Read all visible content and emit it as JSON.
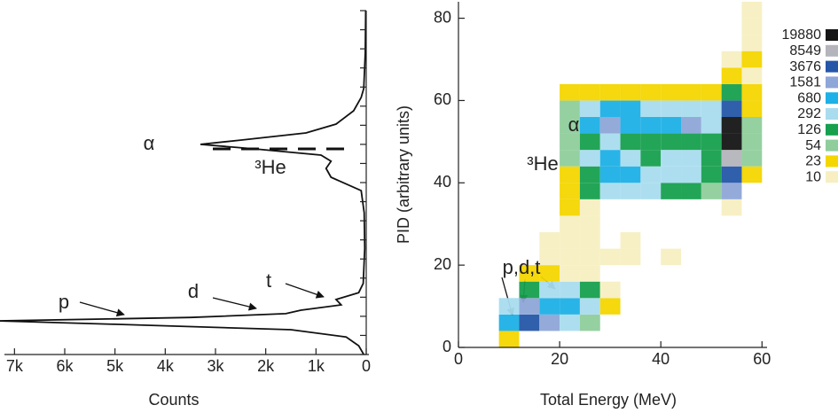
{
  "chart_data": [
    {
      "type": "line",
      "orientation": "horizontal",
      "xlabel": "Counts",
      "xlim": [
        7200,
        0
      ],
      "xticks": [
        {
          "value": 7000,
          "label": "7k"
        },
        {
          "value": 6000,
          "label": "6k"
        },
        {
          "value": 5000,
          "label": "5k"
        },
        {
          "value": 4000,
          "label": "4k"
        },
        {
          "value": 3000,
          "label": "3k"
        },
        {
          "value": 2000,
          "label": "2k"
        },
        {
          "value": 1000,
          "label": "1k"
        },
        0
      ],
      "ylim": [
        0,
        90
      ],
      "yticks": [
        0,
        5,
        10,
        15,
        20,
        25,
        30,
        35,
        40,
        45,
        50,
        55,
        60,
        65,
        70,
        75,
        80,
        85,
        90
      ],
      "ytick_labels": false,
      "yaxis_side": "right",
      "color": "#111111",
      "y": [
        0,
        2.3,
        4.6,
        6.5,
        7.9,
        8.8,
        9.7,
        10.7,
        11.6,
        13.0,
        14.4,
        16.2,
        18.6,
        27.8,
        37.1,
        42.9,
        45.2,
        46.4,
        48.7,
        50.6,
        52.2,
        53.8,
        55.0,
        56.1,
        58.0,
        60.3,
        63.8,
        67.3,
        69.6,
        78.9,
        90
      ],
      "values": [
        50,
        150,
        400,
        1500,
        5000,
        7300,
        3500,
        1600,
        1300,
        500,
        600,
        150,
        60,
        30,
        40,
        100,
        500,
        700,
        800,
        700,
        900,
        2200,
        3300,
        2500,
        1200,
        600,
        250,
        100,
        50,
        20,
        10
      ],
      "annotations": [
        "α",
        "³He",
        "p",
        "d",
        "t"
      ]
    },
    {
      "type": "heatmap",
      "xlabel": "Total Energy (MeV)",
      "ylabel": "PID (arbitrary units)",
      "xlim": [
        0,
        61
      ],
      "xticks": [
        0,
        20,
        40,
        60
      ],
      "ylim": [
        0,
        84
      ],
      "yticks": [
        0,
        20,
        40,
        60,
        80
      ],
      "xbins": [
        0,
        4,
        8,
        12,
        16,
        20,
        24,
        28,
        32,
        36,
        40,
        44,
        48,
        52,
        56,
        60
      ],
      "ybins": [
        0,
        4,
        8,
        12,
        16,
        20,
        24,
        28,
        32,
        36,
        40,
        44,
        48,
        52,
        56,
        60,
        64,
        68,
        72,
        76,
        80,
        84
      ],
      "z": [
        [
          0,
          0,
          23,
          0,
          0,
          0,
          0,
          0,
          0,
          0,
          0,
          0,
          0,
          0,
          0
        ],
        [
          0,
          0,
          680,
          3676,
          1581,
          292,
          54,
          0,
          0,
          0,
          0,
          0,
          0,
          0,
          0
        ],
        [
          0,
          0,
          292,
          1581,
          680,
          680,
          292,
          23,
          0,
          0,
          0,
          0,
          0,
          0,
          0
        ],
        [
          0,
          0,
          0,
          126,
          292,
          292,
          126,
          10,
          0,
          0,
          0,
          0,
          0,
          0,
          0
        ],
        [
          0,
          0,
          0,
          23,
          23,
          10,
          10,
          0,
          0,
          0,
          0,
          0,
          0,
          0,
          0
        ],
        [
          0,
          0,
          0,
          0,
          10,
          10,
          10,
          10,
          10,
          0,
          10,
          0,
          0,
          0,
          0
        ],
        [
          0,
          0,
          0,
          0,
          10,
          10,
          10,
          0,
          10,
          0,
          0,
          0,
          0,
          0,
          0
        ],
        [
          0,
          0,
          0,
          0,
          0,
          10,
          10,
          0,
          0,
          0,
          0,
          0,
          0,
          0,
          0
        ],
        [
          0,
          0,
          0,
          0,
          0,
          23,
          10,
          0,
          0,
          0,
          0,
          0,
          0,
          10,
          0
        ],
        [
          0,
          0,
          0,
          0,
          0,
          23,
          126,
          292,
          292,
          292,
          126,
          126,
          54,
          1581,
          0
        ],
        [
          0,
          0,
          0,
          0,
          0,
          23,
          126,
          680,
          680,
          292,
          292,
          292,
          126,
          3676,
          23
        ],
        [
          0,
          0,
          0,
          0,
          0,
          54,
          292,
          680,
          292,
          126,
          292,
          292,
          126,
          8549,
          54
        ],
        [
          0,
          0,
          0,
          0,
          0,
          54,
          126,
          292,
          126,
          126,
          126,
          126,
          126,
          19880,
          54
        ],
        [
          0,
          0,
          0,
          0,
          0,
          54,
          680,
          1581,
          680,
          680,
          680,
          1581,
          292,
          19880,
          54
        ],
        [
          0,
          0,
          0,
          0,
          0,
          54,
          292,
          680,
          680,
          292,
          292,
          292,
          292,
          3676,
          23
        ],
        [
          0,
          0,
          0,
          0,
          0,
          23,
          23,
          23,
          23,
          23,
          23,
          23,
          23,
          126,
          23
        ],
        [
          0,
          0,
          0,
          0,
          0,
          0,
          0,
          0,
          0,
          0,
          0,
          0,
          0,
          23,
          10
        ],
        [
          0,
          0,
          0,
          0,
          0,
          0,
          0,
          0,
          0,
          0,
          0,
          0,
          0,
          10,
          23
        ],
        [
          0,
          0,
          0,
          0,
          0,
          0,
          0,
          0,
          0,
          0,
          0,
          0,
          0,
          0,
          10
        ],
        [
          0,
          0,
          0,
          0,
          0,
          0,
          0,
          0,
          0,
          0,
          0,
          0,
          0,
          0,
          10
        ],
        [
          0,
          0,
          0,
          0,
          0,
          0,
          0,
          0,
          0,
          0,
          0,
          0,
          0,
          0,
          10
        ]
      ],
      "colorbar": {
        "levels": [
          19880,
          8549,
          3676,
          1581,
          680,
          292,
          126,
          54,
          23,
          10
        ],
        "colors": [
          "#151515",
          "#b4b4bc",
          "#2556a8",
          "#8ea6d8",
          "#1eb0e6",
          "#a9dcef",
          "#17a04e",
          "#8fcd9c",
          "#f4d600",
          "#f7efc2"
        ]
      },
      "annotations": [
        "α",
        "³He",
        "p,d,t"
      ]
    }
  ]
}
